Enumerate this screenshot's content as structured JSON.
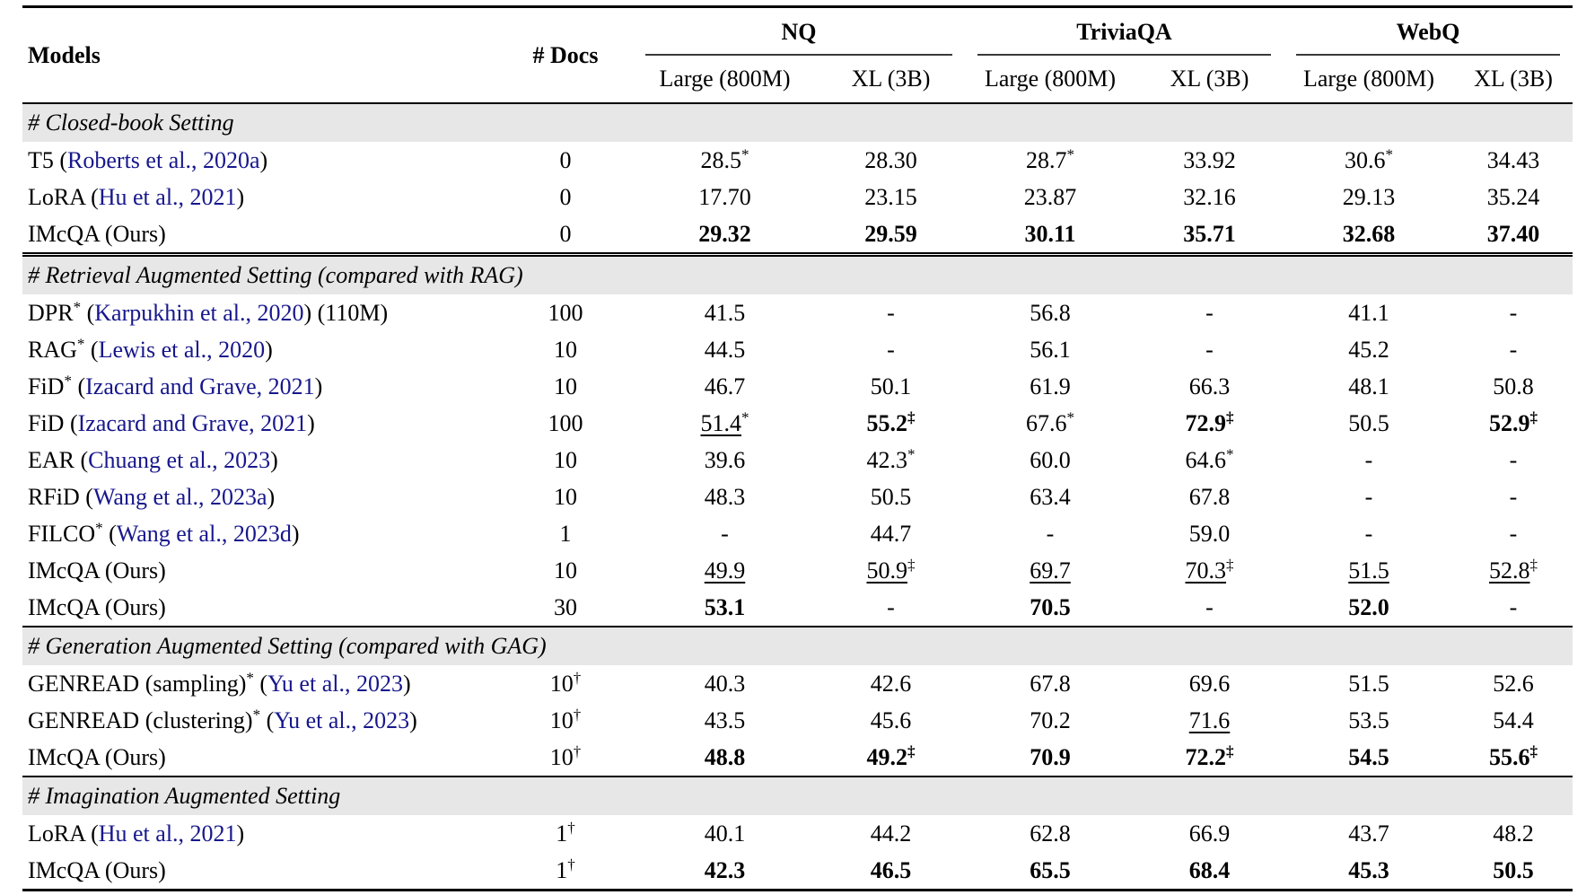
{
  "colors": {
    "citation_link": "#17178C",
    "section_band": "#E7E7E7",
    "rule": "#000000"
  },
  "table": {
    "header": {
      "models_label": "Models",
      "docs_label": "# Docs",
      "groups": [
        "NQ",
        "TriviaQA",
        "WebQ"
      ],
      "subcolumns": [
        "Large (800M)",
        "XL (3B)",
        "Large (800M)",
        "XL (3B)",
        "Large (800M)",
        "XL (3B)"
      ]
    },
    "sections": [
      {
        "title": "# Closed-book Setting",
        "double_rule_after": true,
        "rows": [
          {
            "model": [
              {
                "t": "T5 ("
              },
              {
                "t": "Roberts et al., 2020a",
                "c": true
              },
              {
                "t": ")"
              }
            ],
            "docs": {
              "t": "0"
            },
            "cells": [
              {
                "t": "28.5",
                "s": "*"
              },
              {
                "t": "28.30"
              },
              {
                "t": "28.7",
                "s": "*"
              },
              {
                "t": "33.92"
              },
              {
                "t": "30.6",
                "s": "*"
              },
              {
                "t": "34.43"
              }
            ]
          },
          {
            "model": [
              {
                "t": "LoRA ("
              },
              {
                "t": "Hu et al., 2021",
                "c": true
              },
              {
                "t": ")"
              }
            ],
            "docs": {
              "t": "0"
            },
            "cells": [
              {
                "t": "17.70"
              },
              {
                "t": "23.15"
              },
              {
                "t": "23.87"
              },
              {
                "t": "32.16"
              },
              {
                "t": "29.13"
              },
              {
                "t": "35.24"
              }
            ]
          },
          {
            "model": [
              {
                "t": "IMcQA (Ours)"
              }
            ],
            "docs": {
              "t": "0"
            },
            "cells": [
              {
                "t": "29.32",
                "b": true
              },
              {
                "t": "29.59",
                "b": true
              },
              {
                "t": "30.11",
                "b": true
              },
              {
                "t": "35.71",
                "b": true
              },
              {
                "t": "32.68",
                "b": true
              },
              {
                "t": "37.40",
                "b": true
              }
            ]
          }
        ]
      },
      {
        "title": "# Retrieval Augmented Setting (compared with RAG)",
        "rows": [
          {
            "model": [
              {
                "t": "DPR"
              },
              {
                "t": "*",
                "s": true
              },
              {
                "t": " ("
              },
              {
                "t": "Karpukhin et al., 2020",
                "c": true
              },
              {
                "t": ") (110M)"
              }
            ],
            "docs": {
              "t": "100"
            },
            "cells": [
              {
                "t": "41.5"
              },
              {
                "t": "-"
              },
              {
                "t": "56.8"
              },
              {
                "t": "-"
              },
              {
                "t": "41.1"
              },
              {
                "t": "-"
              }
            ]
          },
          {
            "model": [
              {
                "t": "RAG"
              },
              {
                "t": "*",
                "s": true
              },
              {
                "t": " ("
              },
              {
                "t": "Lewis et al., 2020",
                "c": true
              },
              {
                "t": ")"
              }
            ],
            "docs": {
              "t": "10"
            },
            "cells": [
              {
                "t": "44.5"
              },
              {
                "t": "-"
              },
              {
                "t": "56.1"
              },
              {
                "t": "-"
              },
              {
                "t": "45.2"
              },
              {
                "t": "-"
              }
            ]
          },
          {
            "model": [
              {
                "t": "FiD"
              },
              {
                "t": "*",
                "s": true
              },
              {
                "t": " ("
              },
              {
                "t": "Izacard and Grave, 2021",
                "c": true
              },
              {
                "t": ")"
              }
            ],
            "docs": {
              "t": "10"
            },
            "cells": [
              {
                "t": "46.7"
              },
              {
                "t": "50.1"
              },
              {
                "t": "61.9"
              },
              {
                "t": "66.3"
              },
              {
                "t": "48.1"
              },
              {
                "t": "50.8"
              }
            ]
          },
          {
            "model": [
              {
                "t": "FiD ("
              },
              {
                "t": "Izacard and Grave, 2021",
                "c": true
              },
              {
                "t": ")"
              }
            ],
            "docs": {
              "t": "100"
            },
            "cells": [
              {
                "t": "51.4",
                "s": "*",
                "u": true
              },
              {
                "t": "55.2",
                "s": "‡",
                "b": true
              },
              {
                "t": "67.6",
                "s": "*"
              },
              {
                "t": "72.9",
                "s": "‡",
                "b": true
              },
              {
                "t": "50.5"
              },
              {
                "t": "52.9",
                "s": "‡",
                "b": true
              }
            ]
          },
          {
            "model": [
              {
                "t": "EAR ("
              },
              {
                "t": "Chuang et al., 2023",
                "c": true
              },
              {
                "t": ")"
              }
            ],
            "docs": {
              "t": "10"
            },
            "cells": [
              {
                "t": "39.6"
              },
              {
                "t": "42.3",
                "s": "*"
              },
              {
                "t": "60.0"
              },
              {
                "t": "64.6",
                "s": "*"
              },
              {
                "t": "-"
              },
              {
                "t": "-"
              }
            ]
          },
          {
            "model": [
              {
                "t": "RFiD ("
              },
              {
                "t": "Wang et al., 2023a",
                "c": true
              },
              {
                "t": ")"
              }
            ],
            "docs": {
              "t": "10"
            },
            "cells": [
              {
                "t": "48.3"
              },
              {
                "t": "50.5"
              },
              {
                "t": "63.4"
              },
              {
                "t": "67.8"
              },
              {
                "t": "-"
              },
              {
                "t": "-"
              }
            ]
          },
          {
            "model": [
              {
                "t": "FILCO"
              },
              {
                "t": "*",
                "s": true
              },
              {
                "t": " ("
              },
              {
                "t": "Wang et al., 2023d",
                "c": true
              },
              {
                "t": ")"
              }
            ],
            "docs": {
              "t": "1"
            },
            "cells": [
              {
                "t": "-"
              },
              {
                "t": "44.7"
              },
              {
                "t": "-"
              },
              {
                "t": "59.0"
              },
              {
                "t": "-"
              },
              {
                "t": "-"
              }
            ]
          },
          {
            "model": [
              {
                "t": "IMcQA (Ours)"
              }
            ],
            "docs": {
              "t": "10"
            },
            "cells": [
              {
                "t": "49.9",
                "u": true
              },
              {
                "t": "50.9",
                "s": "‡",
                "u": true
              },
              {
                "t": "69.7",
                "u": true
              },
              {
                "t": "70.3",
                "s": "‡",
                "u": true
              },
              {
                "t": "51.5",
                "u": true
              },
              {
                "t": "52.8",
                "s": "‡",
                "u": true
              }
            ]
          },
          {
            "model": [
              {
                "t": "IMcQA (Ours)"
              }
            ],
            "docs": {
              "t": "30"
            },
            "cells": [
              {
                "t": "53.1",
                "b": true
              },
              {
                "t": "-"
              },
              {
                "t": "70.5",
                "b": true
              },
              {
                "t": "-"
              },
              {
                "t": "52.0",
                "b": true
              },
              {
                "t": "-"
              }
            ]
          }
        ]
      },
      {
        "title": "# Generation Augmented Setting (compared with GAG)",
        "rows": [
          {
            "model": [
              {
                "t": "GENREAD (sampling)"
              },
              {
                "t": "*",
                "s": true
              },
              {
                "t": " ("
              },
              {
                "t": "Yu et al., 2023",
                "c": true
              },
              {
                "t": ")"
              }
            ],
            "docs": {
              "t": "10",
              "s": "†"
            },
            "cells": [
              {
                "t": "40.3"
              },
              {
                "t": "42.6"
              },
              {
                "t": "67.8"
              },
              {
                "t": "69.6"
              },
              {
                "t": "51.5"
              },
              {
                "t": "52.6"
              }
            ]
          },
          {
            "model": [
              {
                "t": "GENREAD (clustering)"
              },
              {
                "t": "*",
                "s": true
              },
              {
                "t": " ("
              },
              {
                "t": "Yu et al., 2023",
                "c": true
              },
              {
                "t": ")"
              }
            ],
            "docs": {
              "t": "10",
              "s": "†"
            },
            "cells": [
              {
                "t": "43.5"
              },
              {
                "t": "45.6"
              },
              {
                "t": "70.2"
              },
              {
                "t": "71.6",
                "u": true
              },
              {
                "t": "53.5"
              },
              {
                "t": "54.4"
              }
            ]
          },
          {
            "model": [
              {
                "t": "IMcQA (Ours)"
              }
            ],
            "docs": {
              "t": "10",
              "s": "†"
            },
            "cells": [
              {
                "t": "48.8",
                "b": true
              },
              {
                "t": "49.2",
                "s": "‡",
                "b": true
              },
              {
                "t": "70.9",
                "b": true
              },
              {
                "t": "72.2",
                "s": "‡",
                "b": true
              },
              {
                "t": "54.5",
                "b": true
              },
              {
                "t": "55.6",
                "s": "‡",
                "b": true
              }
            ]
          }
        ]
      },
      {
        "title": "# Imagination Augmented Setting",
        "rows": [
          {
            "model": [
              {
                "t": "LoRA ("
              },
              {
                "t": "Hu et al., 2021",
                "c": true
              },
              {
                "t": ")"
              }
            ],
            "docs": {
              "t": "1",
              "s": "†"
            },
            "cells": [
              {
                "t": "40.1"
              },
              {
                "t": "44.2"
              },
              {
                "t": "62.8"
              },
              {
                "t": "66.9"
              },
              {
                "t": "43.7"
              },
              {
                "t": "48.2"
              }
            ]
          },
          {
            "model": [
              {
                "t": "IMcQA (Ours)"
              }
            ],
            "docs": {
              "t": "1",
              "s": "†"
            },
            "cells": [
              {
                "t": "42.3",
                "b": true
              },
              {
                "t": "46.5",
                "b": true
              },
              {
                "t": "65.5",
                "b": true
              },
              {
                "t": "68.4",
                "b": true
              },
              {
                "t": "45.3",
                "b": true
              },
              {
                "t": "50.5",
                "b": true
              }
            ]
          }
        ]
      }
    ]
  }
}
